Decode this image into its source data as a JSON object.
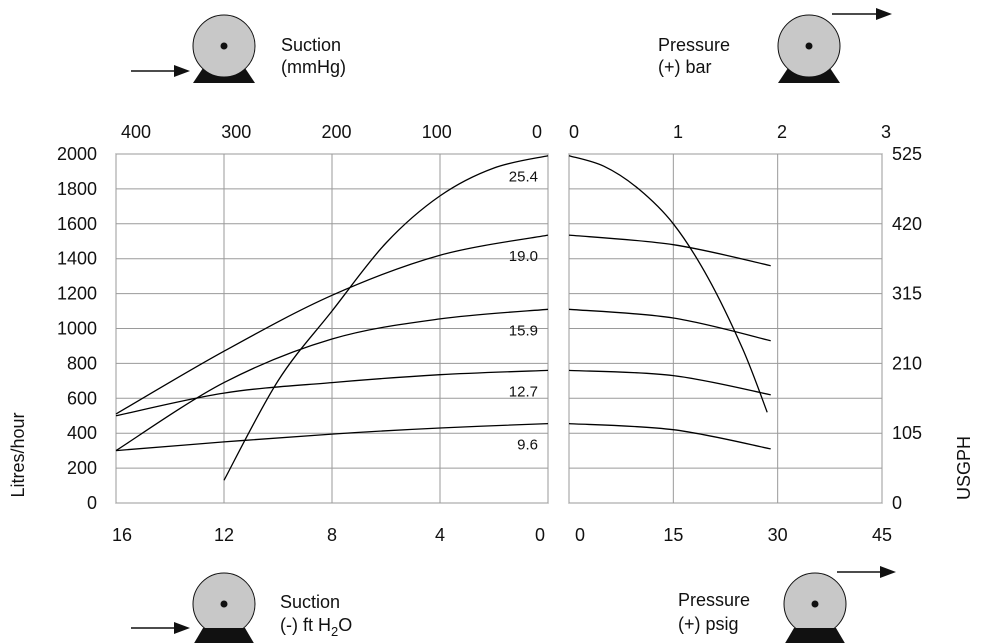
{
  "chart_data": {
    "type": "line",
    "units": {
      "left_y": "Litres/hour",
      "right_y": "USGPH",
      "top_left_x": "Suction (mmHg)",
      "bottom_left_x": "Suction (-) ft H2O",
      "top_right_x": "Pressure (+) bar",
      "bottom_right_x": "Pressure (+) psig"
    },
    "axes": {
      "left_y_ticks": [
        "2000",
        "1800",
        "1600",
        "1400",
        "1200",
        "1000",
        "800",
        "600",
        "400",
        "200",
        "0"
      ],
      "right_y_ticks": [
        "525",
        "420",
        "315",
        "210",
        "105",
        "0"
      ],
      "top_suction_ticks": [
        "400",
        "300",
        "200",
        "100",
        "0"
      ],
      "top_pressure_ticks": [
        "0",
        "1",
        "2",
        "3"
      ],
      "bottom_suction_ticks": [
        "16",
        "12",
        "8",
        "4",
        "0"
      ],
      "bottom_pressure_ticks": [
        "0",
        "15",
        "30",
        "45"
      ]
    },
    "ylim": [
      0,
      2000
    ],
    "suction_xlim_ftH2O": [
      16,
      0
    ],
    "pressure_xlim_psig": [
      0,
      45
    ],
    "grid": true,
    "series_labels": [
      "25.4",
      "19.0",
      "15.9",
      "12.7",
      "9.6"
    ],
    "series": [
      {
        "name": "25.4",
        "suction_ftH2O": [
          12,
          10,
          8,
          6,
          4,
          2,
          0
        ],
        "suction_flow": [
          130,
          700,
          1100,
          1490,
          1760,
          1920,
          1990
        ],
        "pressure_psig": [
          0,
          5,
          10,
          15,
          20,
          25,
          28.5
        ],
        "pressure_flow": [
          1990,
          1930,
          1800,
          1600,
          1290,
          880,
          520
        ]
      },
      {
        "name": "19.0",
        "suction_ftH2O": [
          16,
          12,
          8,
          4,
          0
        ],
        "suction_flow": [
          510,
          870,
          1190,
          1420,
          1535
        ],
        "pressure_psig": [
          0,
          15,
          29
        ],
        "pressure_flow": [
          1535,
          1480,
          1360
        ]
      },
      {
        "name": "15.9",
        "suction_ftH2O": [
          16,
          12,
          8,
          4,
          0
        ],
        "suction_flow": [
          300,
          690,
          940,
          1055,
          1110
        ],
        "pressure_psig": [
          0,
          15,
          29
        ],
        "pressure_flow": [
          1110,
          1060,
          930
        ]
      },
      {
        "name": "12.7",
        "suction_ftH2O": [
          16,
          12,
          8,
          4,
          0
        ],
        "suction_flow": [
          500,
          630,
          690,
          735,
          760
        ],
        "pressure_psig": [
          0,
          15,
          29
        ],
        "pressure_flow": [
          760,
          730,
          620
        ]
      },
      {
        "name": "9.6",
        "suction_ftH2O": [
          16,
          12,
          8,
          4,
          0
        ],
        "suction_flow": [
          300,
          350,
          395,
          430,
          455
        ],
        "pressure_psig": [
          0,
          15,
          29
        ],
        "pressure_flow": [
          455,
          420,
          310
        ]
      }
    ]
  },
  "labels": {
    "suction_top_line1": "Suction",
    "suction_top_line2": "(mmHg)",
    "pressure_top_line1": "Pressure",
    "pressure_top_line2": "(+) bar",
    "suction_bottom_line1": "Suction",
    "suction_bottom_line2_pre": "(-) ft H",
    "suction_bottom_line2_sub": "2",
    "suction_bottom_line2_post": "O",
    "pressure_bottom_line1": "Pressure",
    "pressure_bottom_line2": "(+) psig",
    "left_axis_title": "Litres/hour",
    "right_axis_title": "USGPH"
  },
  "icons": [
    "pump-icon",
    "arrow-right-icon"
  ]
}
